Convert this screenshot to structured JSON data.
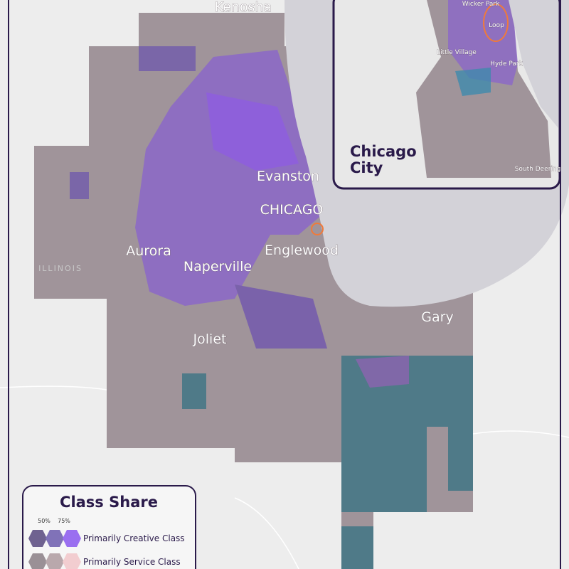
{
  "map": {
    "labels": [
      "Kenosha",
      "Evanston",
      "CHICAGO",
      "Aurora",
      "Englewood",
      "Naperville",
      "Joliet",
      "Gary",
      "ILLINOIS"
    ]
  },
  "inset": {
    "title_lines": [
      "Chicago",
      "City"
    ],
    "labels": [
      "Wicker Park",
      "Loop",
      "Little Village",
      "Hyde Park",
      "South Deering"
    ]
  },
  "legend": {
    "title": "Class Share",
    "scale_labels": [
      "50%",
      "75%"
    ],
    "items": [
      "Primarily Creative Class",
      "Primarily Service Class"
    ]
  }
}
